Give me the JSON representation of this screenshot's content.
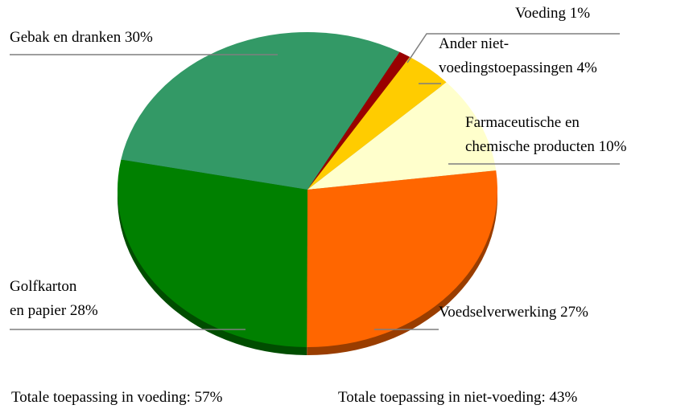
{
  "chart_data": {
    "type": "pie",
    "categories": [
      [
        "Gebak en dranken"
      ],
      [
        "Voeding"
      ],
      [
        "Ander niet-",
        "voedingstoepassingen"
      ],
      [
        "Farmaceutische en",
        "chemische producten"
      ],
      [
        "Voedselverwerking"
      ],
      [
        "Golfkarton",
        "en papier"
      ]
    ],
    "values": [
      30,
      1,
      4,
      10,
      27,
      28
    ],
    "value_labels": [
      "30%",
      "1%",
      "4%",
      "10%",
      "27%",
      "28%"
    ],
    "colors": [
      "#339966",
      "#990000",
      "#ffcc00",
      "#ffffcc",
      "#ff6600",
      "#008000"
    ],
    "annotations": [
      "Totale toepassing in voeding: 57%",
      "Totale toepassing in niet-voeding: 43%"
    ]
  }
}
